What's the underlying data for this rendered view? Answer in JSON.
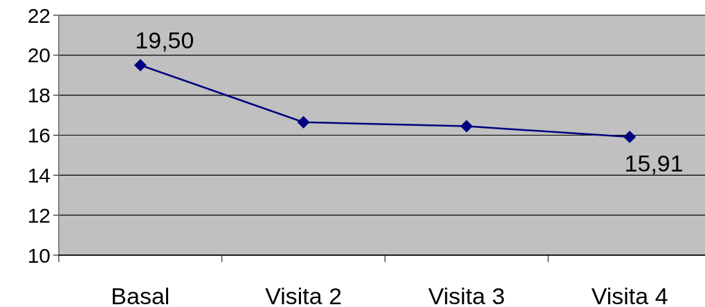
{
  "chart_data": {
    "type": "line",
    "categories": [
      "Basal",
      "Visita 2",
      "Visita 3",
      "Visita 4"
    ],
    "series": [
      {
        "color": "#000080",
        "values": [
          19.5,
          16.65,
          16.45,
          15.91
        ],
        "value_labels": [
          "19,50",
          null,
          null,
          "15,91"
        ]
      }
    ],
    "ylim": [
      10,
      22
    ],
    "yticks": [
      10,
      12,
      14,
      16,
      18,
      20,
      22
    ],
    "grid": "y",
    "marker": "diamond",
    "line_style": "solid"
  }
}
